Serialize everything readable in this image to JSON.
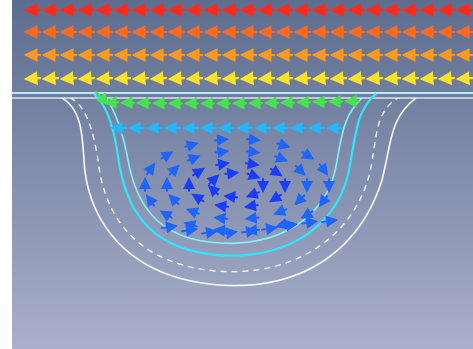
{
  "scene": {
    "background_top": "#5c6d8f",
    "background_bottom": "#a9b0cb",
    "frame_color": "#ffffff",
    "wall_colors": {
      "inner": "#2ee6ff",
      "inner2": "#7ff7ff",
      "dashed": "#ffffff",
      "outer": "#ffffff"
    },
    "arrow_bands": [
      {
        "name": "band-red",
        "color": "#ff2a1a"
      },
      {
        "name": "band-orange",
        "color": "#ff6a1f"
      },
      {
        "name": "band-amber",
        "color": "#ff9a1f"
      },
      {
        "name": "band-yellow",
        "color": "#ffe12a"
      }
    ],
    "cavity_colors": {
      "green": "#47e34c",
      "cyan": "#21b8ff",
      "blue": "#1e64ff",
      "deep_blue": "#1a3cff"
    }
  }
}
